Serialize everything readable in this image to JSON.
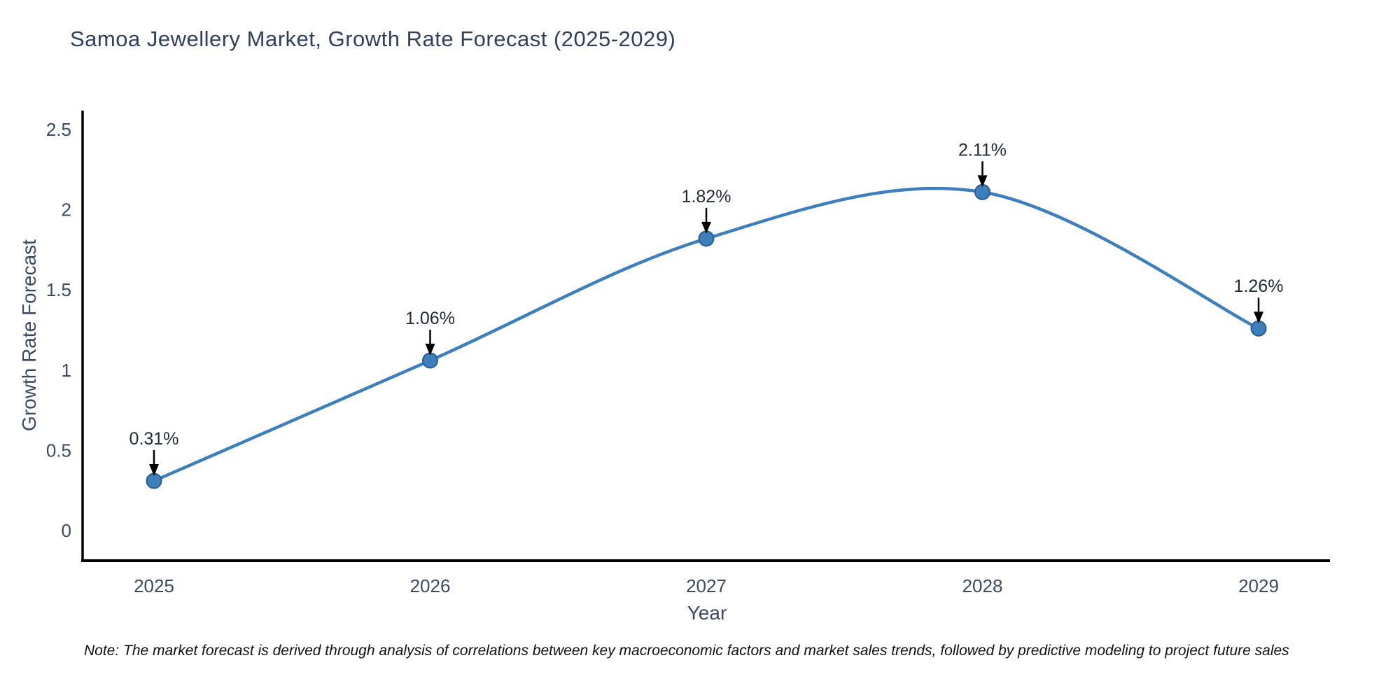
{
  "title": "Samoa Jewellery Market, Growth Rate Forecast (2025-2029)",
  "note": "Note: The market forecast is derived through analysis of correlations between key macroeconomic factors and market sales trends, followed by predictive modeling to project future sales",
  "chart_data": {
    "type": "line",
    "title": "Samoa Jewellery Market, Growth Rate Forecast (2025-2029)",
    "xlabel": "Year",
    "ylabel": "Growth Rate Forecast",
    "categories": [
      "2025",
      "2026",
      "2027",
      "2028",
      "2029"
    ],
    "values": [
      0.31,
      1.06,
      1.82,
      2.11,
      1.26
    ],
    "point_labels": [
      "0.31%",
      "1.06%",
      "1.82%",
      "2.11%",
      "1.26%"
    ],
    "ylim": [
      0,
      2.5
    ],
    "yticks": [
      0,
      0.5,
      1,
      1.5,
      2,
      2.5
    ],
    "ytick_labels": [
      "0",
      "0.5",
      "1",
      "1.5",
      "2",
      "2.5"
    ],
    "line_shape": "spline",
    "grid": false,
    "legend": "none",
    "annotations_style": "value label with downward black arrow at each point",
    "colors": {
      "line": "#3d7ebc",
      "marker_fill": "#3d7ebc",
      "marker_edge": "#2a5d8f",
      "axis": "#000000",
      "tick_label": "#3b4a63",
      "title_text": "#2f3f5c",
      "annotation_text": "#1f2937",
      "annotation_arrow": "#000000",
      "background": "#ffffff",
      "note_text": "#111111"
    }
  }
}
